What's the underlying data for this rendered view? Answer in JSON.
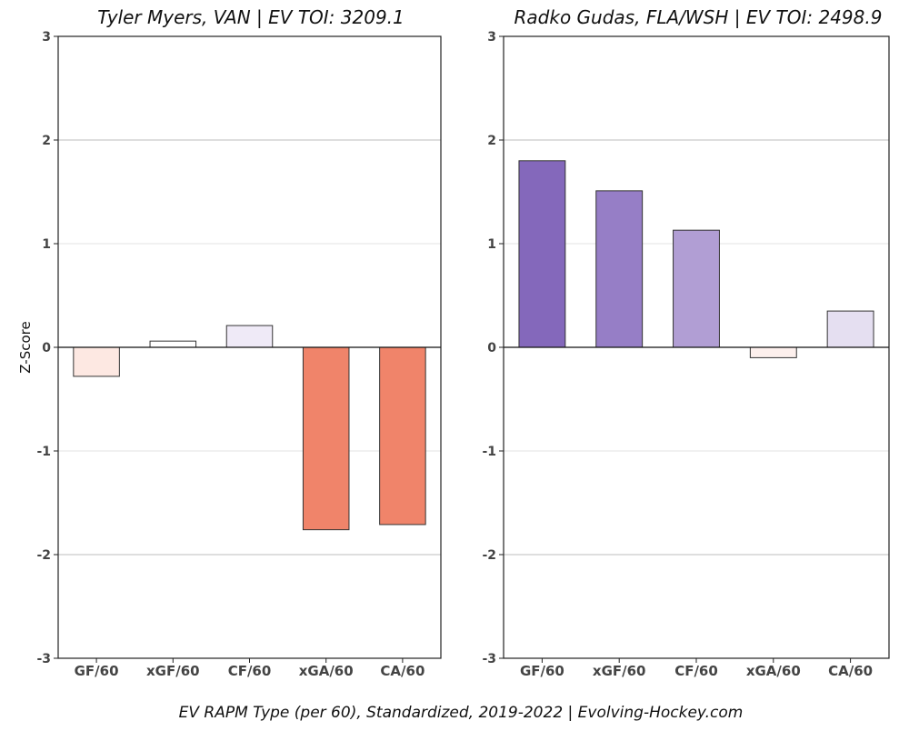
{
  "caption": "EV RAPM Type (per 60), Standardized, 2019-2022    |    Evolving-Hockey.com",
  "chart_data": [
    {
      "type": "bar",
      "title": "Tyler Myers, VAN  |  EV TOI: 3209.1",
      "ylabel": "Z-Score",
      "xlabel": "",
      "ylim": [
        -3,
        3
      ],
      "yticks": [
        "-3",
        "-2",
        "-1",
        "0",
        "1",
        "2",
        "3"
      ],
      "grid": "horizontal",
      "categories": [
        "GF/60",
        "xGF/60",
        "CF/60",
        "xGA/60",
        "CA/60"
      ],
      "values": [
        -0.28,
        0.06,
        0.21,
        -1.76,
        -1.71
      ],
      "colors": [
        "#fde8e2",
        "#ffffff",
        "#efeaf7",
        "#f0846a",
        "#f0846a"
      ]
    },
    {
      "type": "bar",
      "title": "Radko Gudas, FLA/WSH  |  EV TOI: 2498.9",
      "ylabel": "",
      "xlabel": "",
      "ylim": [
        -3,
        3
      ],
      "yticks": [
        "-3",
        "-2",
        "-1",
        "0",
        "1",
        "2",
        "3"
      ],
      "grid": "horizontal",
      "categories": [
        "GF/60",
        "xGF/60",
        "CF/60",
        "xGA/60",
        "CA/60"
      ],
      "values": [
        1.8,
        1.51,
        1.13,
        -0.1,
        0.35
      ],
      "colors": [
        "#8468bb",
        "#967ec6",
        "#b19ed4",
        "#fdf0ed",
        "#e5dff1"
      ]
    }
  ]
}
